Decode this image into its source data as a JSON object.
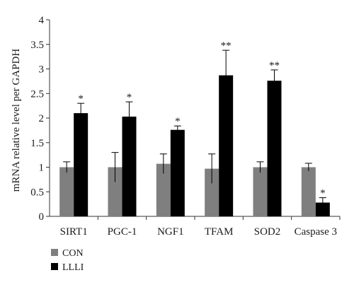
{
  "chart_data": {
    "type": "bar",
    "title": "",
    "xlabel": "",
    "ylabel": "mRNA relative level per GAPDH",
    "ylim": [
      0,
      4
    ],
    "yticks": [
      "0",
      "0.5",
      "1",
      "1.5",
      "2",
      "2.5",
      "3",
      "3.5",
      "4"
    ],
    "grid": false,
    "legend_position": "bottom-left",
    "categories": [
      "SIRT1",
      "PGC-1",
      "NGF1",
      "TFAM",
      "SOD2",
      "Caspase 3"
    ],
    "series": [
      {
        "name": "CON",
        "color": "#7f7f7f",
        "values": [
          1.0,
          1.0,
          1.07,
          0.97,
          1.0,
          1.0
        ],
        "errors": [
          0.11,
          0.3,
          0.2,
          0.3,
          0.11,
          0.08
        ],
        "significance": [
          "",
          "",
          "",
          "",
          "",
          ""
        ]
      },
      {
        "name": "LLLI",
        "color": "#000000",
        "values": [
          2.1,
          2.03,
          1.76,
          2.87,
          2.76,
          0.28
        ],
        "errors": [
          0.2,
          0.3,
          0.08,
          0.51,
          0.22,
          0.1
        ],
        "significance": [
          "*",
          "*",
          "*",
          "**",
          "**",
          "*"
        ]
      }
    ]
  }
}
